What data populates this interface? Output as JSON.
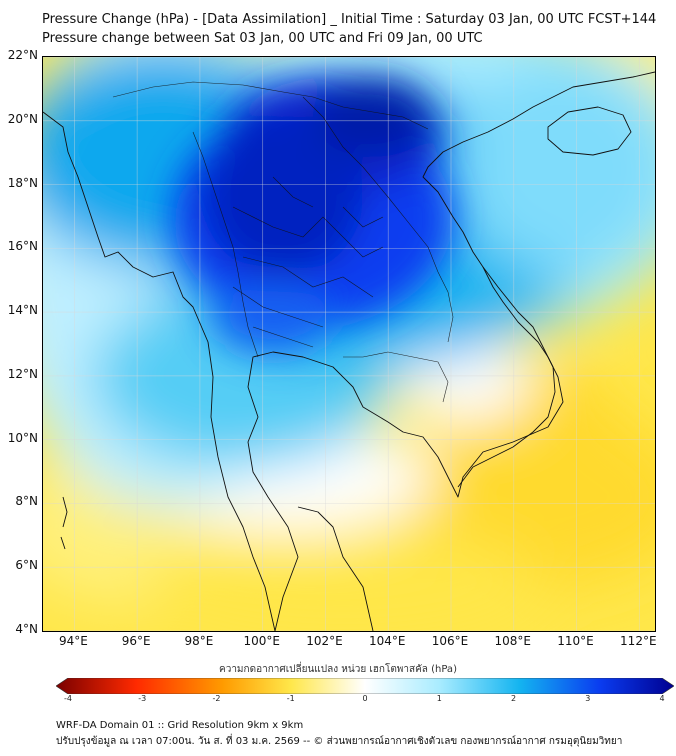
{
  "header": {
    "title_line1": "Pressure Change (hPa) - [Data Assimilation] _ Initial Time : Saturday 03 Jan, 00 UTC FCST+144",
    "title_line2": "Pressure change between Sat 03 Jan, 00 UTC and Fri 09 Jan, 00 UTC"
  },
  "map": {
    "lat_labels": [
      "22°N",
      "20°N",
      "18°N",
      "16°N",
      "14°N",
      "12°N",
      "10°N",
      "8°N",
      "6°N",
      "4°N"
    ],
    "lon_labels": [
      "94°E",
      "96°E",
      "98°E",
      "100°E",
      "102°E",
      "104°E",
      "106°E",
      "108°E",
      "110°E",
      "112°E"
    ],
    "lat_range": [
      4,
      22
    ],
    "lon_range": [
      93,
      112.5
    ],
    "grid": true
  },
  "colorbar": {
    "title": "ความกดอากาศเปลี่ยนแปลง หน่วย เฮกโตพาสคัล (hPa)",
    "tick_labels": [
      "-4",
      "-3",
      "-2",
      "-1",
      "0",
      "1",
      "2",
      "3",
      "4"
    ],
    "range": [
      -4,
      4
    ],
    "colors": {
      "darkest_negative": "#7a0000",
      "red": "#ff2a00",
      "orange": "#ff9b00",
      "yellow": "#ffe74a",
      "white": "#ffffff",
      "light_blue": "#a9ecff",
      "cyan": "#14b4f0",
      "blue": "#0a3cf0",
      "darkest_positive": "#000090"
    }
  },
  "footer": {
    "line1": "WRF-DA Domain 01 :: Grid Resolution 9km x 9km",
    "line2": "ปรับปรุงข้อมูล ณ เวลา 07:00น. วัน ส. ที่ 03 ม.ค. 2569 -- © ส่วนพยากรณ์อากาศเชิงตัวเลข กองพยากรณ์อากาศ กรมอุตุนิยมวิทยา"
  }
}
